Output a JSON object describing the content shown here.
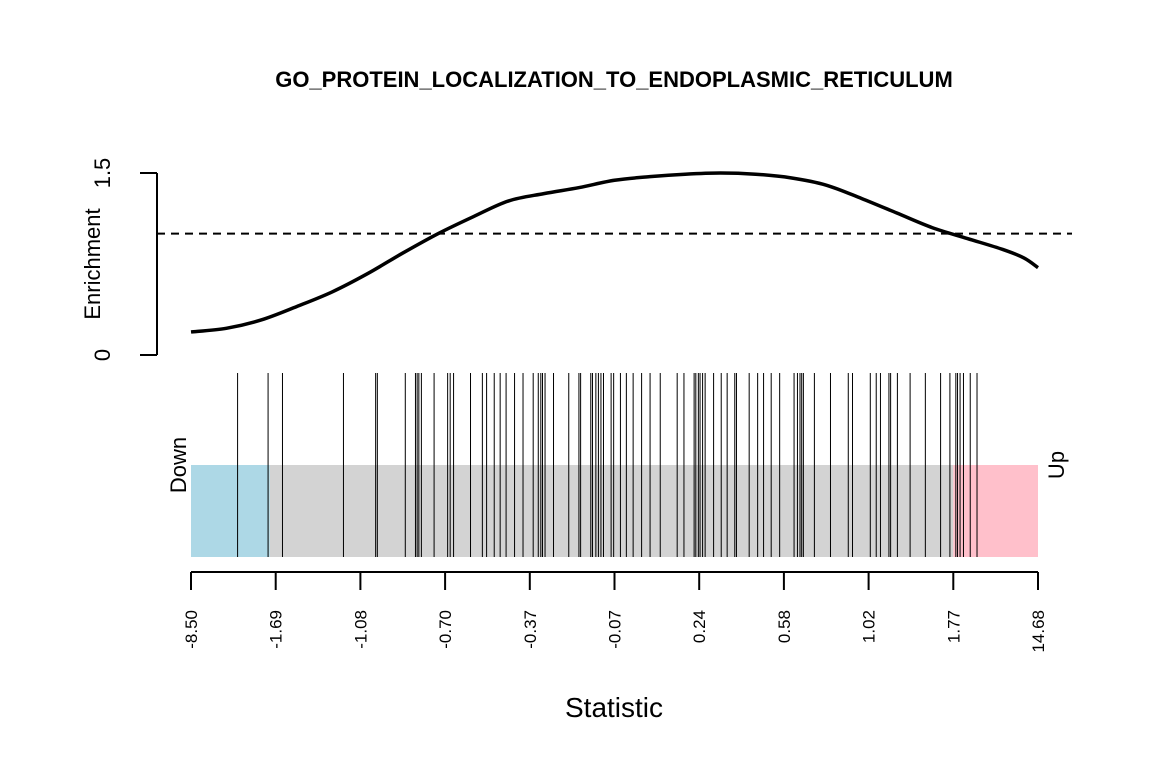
{
  "chart_data": {
    "type": "barcode-enrichment",
    "title": "GO_PROTEIN_LOCALIZATION_TO_ENDOPLASMIC_RETICULUM",
    "xlabel": "Statistic",
    "ylabel": "Enrichment",
    "y_ticks": [
      "0",
      "1.5"
    ],
    "ylim": [
      0,
      1.5
    ],
    "reference_line": 1.0,
    "x_tick_labels": [
      "-8.50",
      "-1.69",
      "-1.08",
      "-0.70",
      "-0.37",
      "-0.07",
      "0.24",
      "0.58",
      "1.02",
      "1.77",
      "14.68"
    ],
    "rank_range": [
      0,
      1
    ],
    "down_label": "Down",
    "up_label": "Up",
    "down_region": [
      0,
      0.093
    ],
    "up_region": [
      0.9,
      1
    ],
    "colors": {
      "down": "#add8e6",
      "middle": "#d3d3d3",
      "up": "#ffc0cb",
      "line": "#000000"
    },
    "enrichment_curve": [
      [
        0.0,
        0.19
      ],
      [
        0.05,
        0.22
      ],
      [
        0.1,
        0.29
      ],
      [
        0.15,
        0.4
      ],
      [
        0.2,
        0.52
      ],
      [
        0.25,
        0.67
      ],
      [
        0.3,
        0.84
      ],
      [
        0.35,
        1.0
      ],
      [
        0.4,
        1.14
      ],
      [
        0.45,
        1.27
      ],
      [
        0.5,
        1.33
      ],
      [
        0.55,
        1.38
      ],
      [
        0.6,
        1.44
      ],
      [
        0.65,
        1.47
      ],
      [
        0.7,
        1.49
      ],
      [
        0.75,
        1.5
      ],
      [
        0.8,
        1.49
      ],
      [
        0.85,
        1.46
      ],
      [
        0.9,
        1.4
      ],
      [
        0.95,
        1.29
      ],
      [
        1.0,
        1.17
      ],
      [
        1.05,
        1.05
      ],
      [
        1.1,
        0.96
      ],
      [
        1.15,
        0.87
      ],
      [
        1.18,
        0.8
      ],
      [
        1.2,
        0.72
      ]
    ],
    "barcode_positions": [
      0.055,
      0.091,
      0.108,
      0.18,
      0.218,
      0.22,
      0.253,
      0.265,
      0.267,
      0.269,
      0.272,
      0.287,
      0.303,
      0.306,
      0.31,
      0.33,
      0.344,
      0.349,
      0.358,
      0.365,
      0.372,
      0.382,
      0.392,
      0.404,
      0.41,
      0.413,
      0.415,
      0.418,
      0.428,
      0.446,
      0.458,
      0.46,
      0.472,
      0.474,
      0.478,
      0.481,
      0.484,
      0.487,
      0.496,
      0.499,
      0.507,
      0.514,
      0.522,
      0.532,
      0.542,
      0.554,
      0.574,
      0.582,
      0.594,
      0.596,
      0.599,
      0.601,
      0.604,
      0.607,
      0.617,
      0.626,
      0.633,
      0.642,
      0.644,
      0.659,
      0.669,
      0.676,
      0.685,
      0.695,
      0.712,
      0.716,
      0.719,
      0.721,
      0.723,
      0.736,
      0.755,
      0.776,
      0.781,
      0.802,
      0.809,
      0.814,
      0.824,
      0.826,
      0.834,
      0.849,
      0.867,
      0.885,
      0.896,
      0.903,
      0.905,
      0.908,
      0.912,
      0.92,
      0.928
    ]
  }
}
